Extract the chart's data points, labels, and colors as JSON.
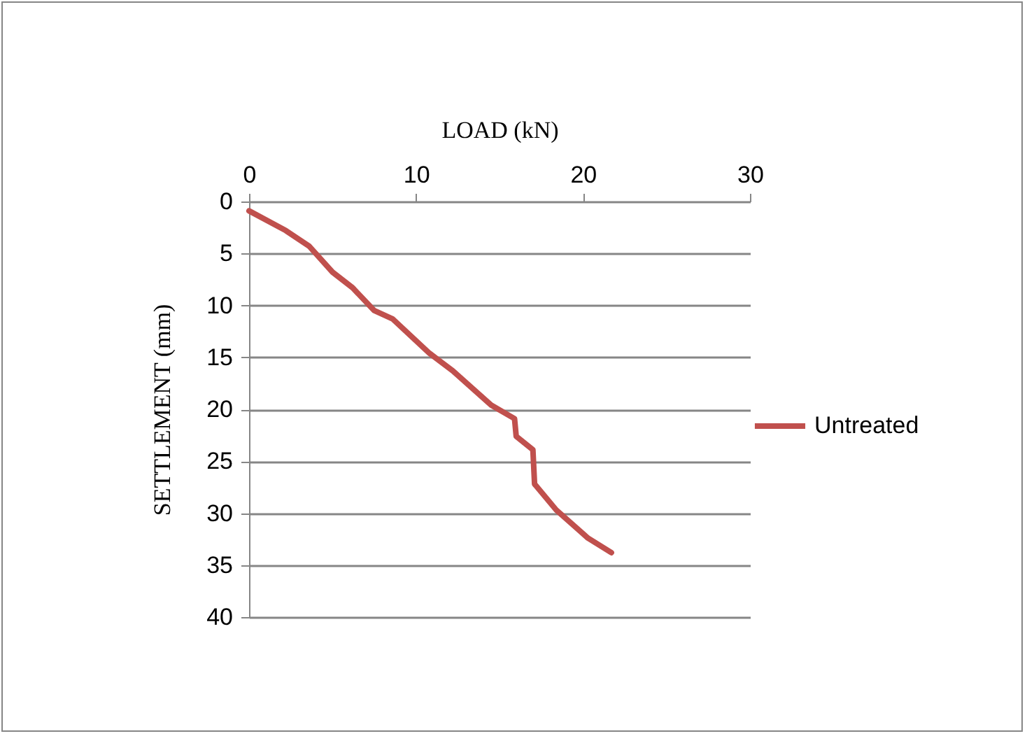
{
  "chart_data": {
    "type": "line",
    "xlabel": "LOAD (kN)",
    "ylabel": "SETTLEMENT (mm)",
    "xlim": [
      0,
      30
    ],
    "xticks": [
      0,
      10,
      20,
      30
    ],
    "ylim": [
      40,
      0
    ],
    "yticks": [
      0,
      5,
      10,
      15,
      20,
      25,
      30,
      35,
      40
    ],
    "grid": "y",
    "line_style": "solid",
    "legend": "right",
    "series": [
      {
        "name": "Untreated",
        "color": "#c0504d",
        "x": [
          0,
          2.2,
          3.6,
          5.0,
          6.2,
          7.5,
          8.6,
          10.8,
          12.2,
          14.5,
          15.9,
          16.0,
          17.0,
          17.1,
          18.4,
          20.3,
          21.7
        ],
        "values": [
          0.9,
          2.8,
          4.3,
          6.8,
          8.3,
          10.5,
          11.3,
          14.6,
          16.3,
          19.6,
          20.9,
          22.6,
          23.9,
          27.2,
          29.7,
          32.4,
          33.8
        ]
      }
    ]
  }
}
